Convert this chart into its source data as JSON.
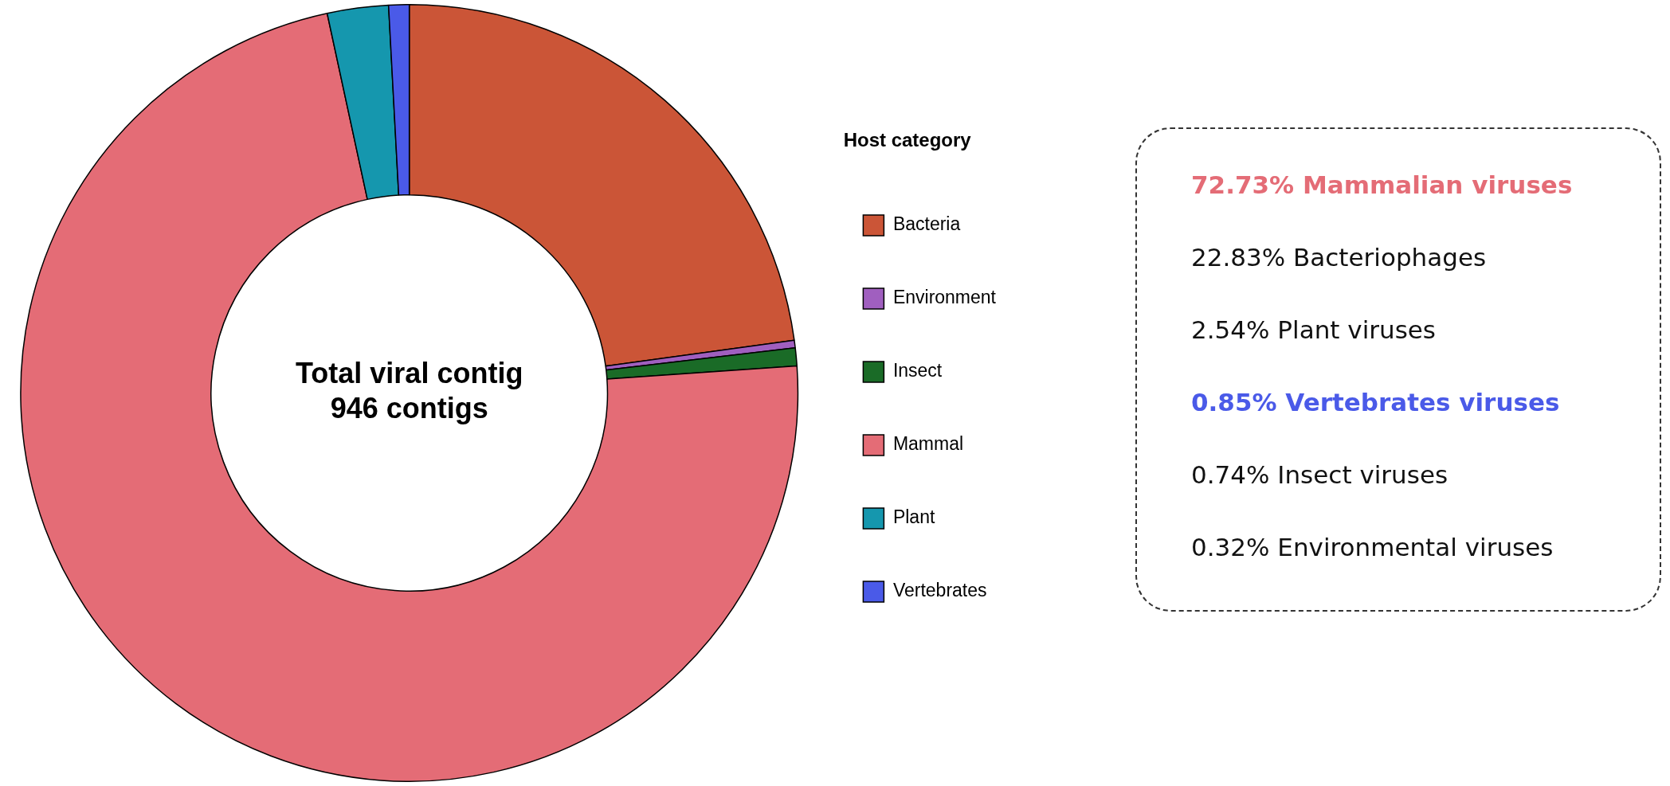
{
  "chart_data": {
    "type": "donut",
    "title": "Total viral contig",
    "subtitle": "946 contigs",
    "legend_title": "Host category",
    "legend": "right",
    "categories": [
      "Bacteria",
      "Environment",
      "Insect",
      "Mammal",
      "Plant",
      "Vertebrates"
    ],
    "values": [
      22.83,
      0.32,
      0.74,
      72.73,
      2.54,
      0.85
    ],
    "colors": [
      "#cb5537",
      "#a05fbf",
      "#1a6b27",
      "#e46c76",
      "#1597ae",
      "#4a5ae8"
    ],
    "annotations": [
      "72.73% Mammalian viruses",
      "22.83% Bacteriophages",
      "2.54% Plant viruses",
      "0.85% Vertebrates viruses",
      "0.74% Insect viruses",
      "0.32% Environmental viruses"
    ]
  }
}
